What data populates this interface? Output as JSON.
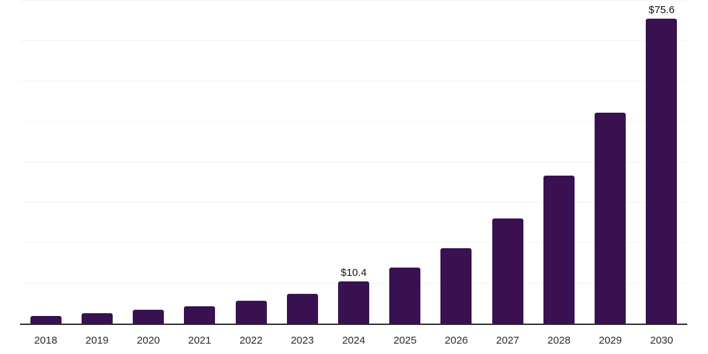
{
  "chart_data": {
    "type": "bar",
    "title": "",
    "xlabel": "",
    "ylabel": "",
    "categories": [
      "2018",
      "2019",
      "2020",
      "2021",
      "2022",
      "2023",
      "2024",
      "2025",
      "2026",
      "2027",
      "2028",
      "2029",
      "2030"
    ],
    "values": [
      1.9,
      2.6,
      3.4,
      4.3,
      5.7,
      7.4,
      10.4,
      13.9,
      18.7,
      26.0,
      36.6,
      52.3,
      75.6
    ],
    "data_labels": {
      "2024": "$10.4",
      "2030": "$75.6"
    },
    "ylim": [
      0,
      80
    ],
    "gridline_interval": 10,
    "grid": "horizontal",
    "legend": "none",
    "y_axis_tick_labels": "none",
    "colors": {
      "bar": "#3a1150",
      "gridline": "#f4f4f4",
      "axis": "#2b2b2b",
      "tick_label": "#2b2b2b",
      "value_label": "#111111",
      "background": "#ffffff"
    }
  }
}
